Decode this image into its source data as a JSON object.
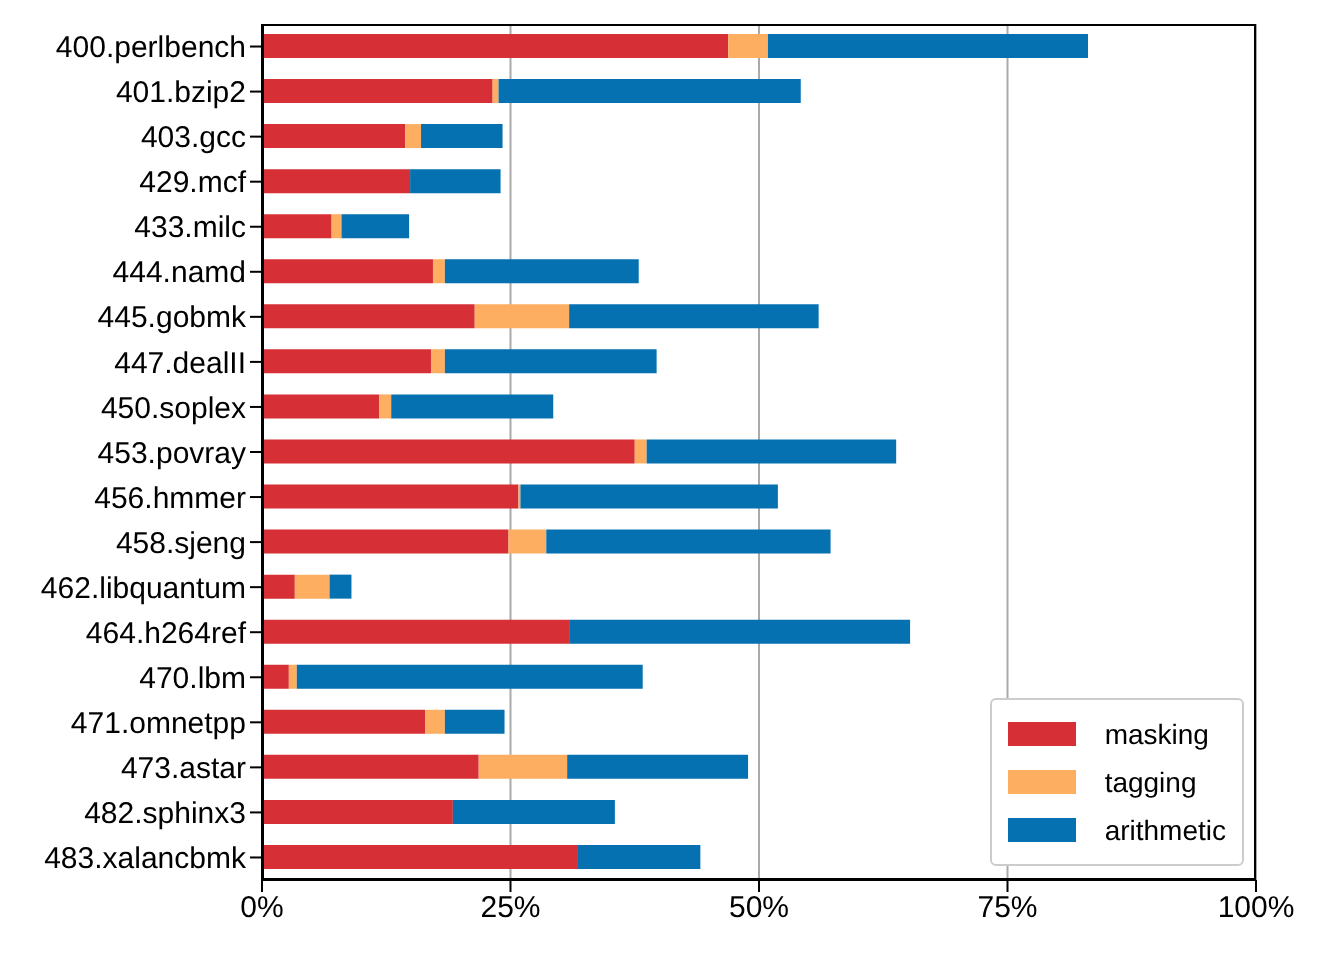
{
  "chart_data": {
    "type": "bar",
    "orientation": "horizontal",
    "stacked": true,
    "categories": [
      "400.perlbench",
      "401.bzip2",
      "403.gcc",
      "429.mcf",
      "433.milc",
      "444.namd",
      "445.gobmk",
      "447.dealII",
      "450.soplex",
      "453.povray",
      "456.hmmer",
      "458.sjeng",
      "462.libquantum",
      "464.h264ref",
      "470.lbm",
      "471.omnetpp",
      "473.astar",
      "482.sphinx3",
      "483.xalancbmk"
    ],
    "series": [
      {
        "name": "masking",
        "color": "#d62f35",
        "values": [
          46.9,
          23.2,
          14.4,
          14.9,
          7.0,
          17.2,
          21.4,
          17.0,
          11.8,
          37.5,
          25.8,
          24.8,
          3.3,
          30.9,
          2.7,
          16.4,
          21.8,
          19.2,
          31.7
        ]
      },
      {
        "name": "tagging",
        "color": "#fdae61",
        "values": [
          4.0,
          0.6,
          1.6,
          0,
          1.0,
          1.2,
          9.5,
          1.4,
          1.2,
          1.2,
          0.2,
          3.8,
          3.5,
          0,
          0.8,
          2.0,
          8.9,
          0,
          0
        ]
      },
      {
        "name": "arithmetic",
        "color": "#0571b0",
        "values": [
          32.2,
          30.4,
          8.2,
          9.1,
          6.8,
          19.5,
          25.1,
          21.3,
          16.3,
          25.1,
          25.9,
          28.6,
          2.2,
          34.3,
          34.8,
          6.0,
          18.2,
          16.3,
          12.4
        ]
      }
    ],
    "xlim": [
      0,
      100
    ],
    "xticks": [
      {
        "value": 0,
        "label": "0%"
      },
      {
        "value": 25,
        "label": "25%"
      },
      {
        "value": 50,
        "label": "50%"
      },
      {
        "value": 75,
        "label": "75%"
      },
      {
        "value": 100,
        "label": "100%"
      }
    ],
    "grid": "x",
    "legend": "bottom right"
  }
}
